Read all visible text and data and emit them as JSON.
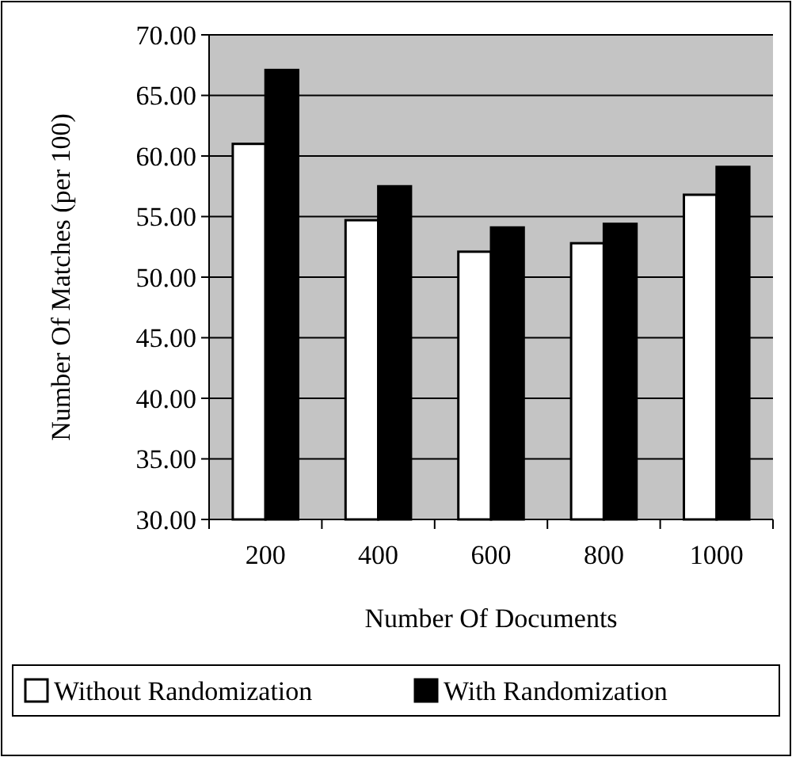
{
  "chart_data": {
    "type": "bar",
    "xlabel": "Number Of Documents",
    "ylabel": "Number Of Matches (per 100)",
    "categories": [
      "200",
      "400",
      "600",
      "800",
      "1000"
    ],
    "series": [
      {
        "name": "Without Randomization",
        "color": "#ffffff",
        "values": [
          61.0,
          54.7,
          52.1,
          52.8,
          56.8
        ]
      },
      {
        "name": "With Randomization",
        "color": "#000000",
        "values": [
          67.1,
          57.5,
          54.1,
          54.4,
          59.1
        ]
      }
    ],
    "ylim": [
      30,
      70
    ],
    "yticks": [
      {
        "value": 30,
        "label": "30.00"
      },
      {
        "value": 35,
        "label": "35.00"
      },
      {
        "value": 40,
        "label": "40.00"
      },
      {
        "value": 45,
        "label": "45.00"
      },
      {
        "value": 50,
        "label": "50.00"
      },
      {
        "value": 55,
        "label": "55.00"
      },
      {
        "value": 60,
        "label": "60.00"
      },
      {
        "value": 65,
        "label": "65.00"
      },
      {
        "value": 70,
        "label": "70.00"
      }
    ],
    "grid": "y",
    "legend": "bottom"
  }
}
